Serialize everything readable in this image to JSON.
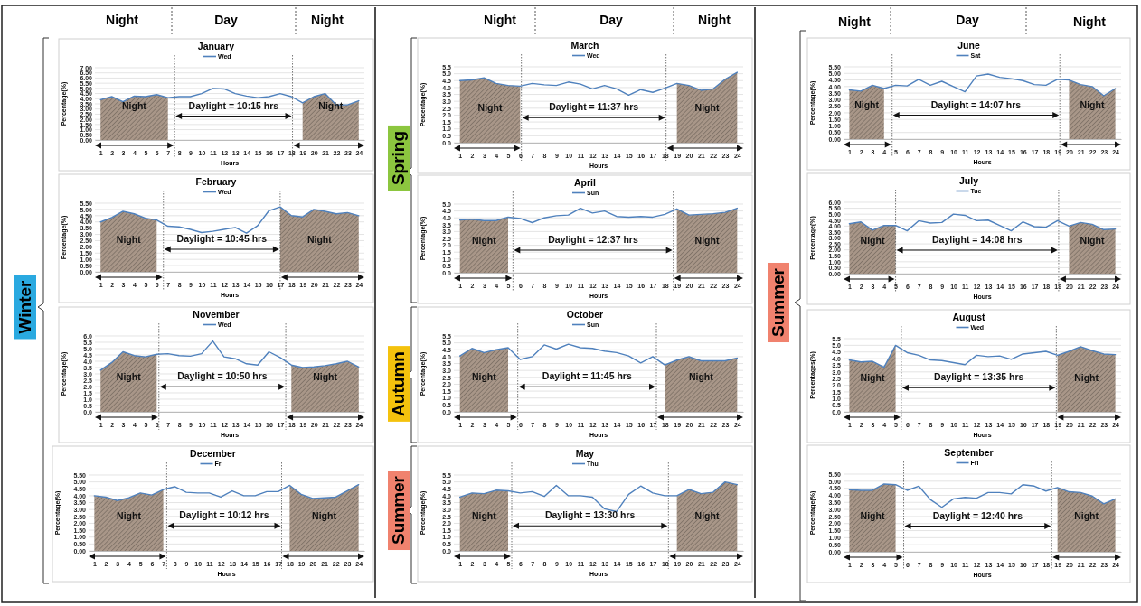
{
  "chart_data": [
    {
      "type": "line",
      "title": "January",
      "xlabel": "Hours",
      "ylabel": "Percentage(%)",
      "legend": "top",
      "grid": "y",
      "x": [
        1,
        2,
        3,
        4,
        5,
        6,
        7,
        8,
        9,
        10,
        11,
        12,
        13,
        14,
        15,
        16,
        17,
        18,
        19,
        20,
        21,
        22,
        23,
        24
      ],
      "xlim": [
        0.5,
        24.5
      ],
      "xticks": [
        1,
        2,
        3,
        4,
        5,
        6,
        7,
        8,
        9,
        10,
        11,
        12,
        13,
        14,
        15,
        16,
        17,
        18,
        19,
        20,
        21,
        22,
        23,
        24
      ],
      "ylim": [
        0,
        7
      ],
      "yticks": [
        {
          "value": 0,
          "label": "0.00"
        },
        {
          "value": 0.5,
          "label": "0.50"
        },
        {
          "value": 1,
          "label": "1.00"
        },
        {
          "value": 1.5,
          "label": "1.50"
        },
        {
          "value": 2,
          "label": "2.00"
        },
        {
          "value": 2.5,
          "label": "2.50"
        },
        {
          "value": 3,
          "label": "3.00"
        },
        {
          "value": 3.5,
          "label": "3.50"
        },
        {
          "value": 4,
          "label": "4.00"
        },
        {
          "value": 4.5,
          "label": "4.50"
        },
        {
          "value": 5,
          "label": "5.00"
        },
        {
          "value": 5.5,
          "label": "5.50"
        },
        {
          "value": 6,
          "label": "6.00"
        },
        {
          "value": 6.5,
          "label": "6.50"
        },
        {
          "value": 7,
          "label": "7.00"
        }
      ],
      "series": [
        {
          "type": "area",
          "color": "#a89688",
          "x": [
            1,
            2,
            3,
            4,
            5,
            6,
            7
          ],
          "values": [
            3.9,
            4.2,
            3.7,
            4.25,
            4.2,
            4.4,
            4.1
          ]
        },
        {
          "type": "area",
          "color": "#a89688",
          "x": [
            19,
            20,
            21,
            22,
            23,
            24
          ],
          "values": [
            3.6,
            4.2,
            4.5,
            3.4,
            3.4,
            3.8
          ]
        },
        {
          "name": "Wed",
          "color": "#4f81bd",
          "values": [
            3.9,
            4.2,
            3.7,
            4.25,
            4.2,
            4.4,
            4.1,
            4.2,
            4.2,
            4.5,
            5.0,
            4.95,
            4.5,
            4.25,
            4.1,
            4.2,
            4.5,
            4.2,
            3.6,
            4.2,
            4.5,
            3.4,
            3.4,
            3.8
          ]
        }
      ],
      "ref_lines": [
        {
          "axis": "x",
          "value": 7.6,
          "line_style": "dotted"
        },
        {
          "axis": "x",
          "value": 18.1,
          "line_style": "dotted"
        }
      ],
      "annotations": [
        "Daylight = 10:15 hrs",
        "Night",
        "Night"
      ]
    },
    {
      "type": "line",
      "title": "February",
      "xlabel": "Hours",
      "ylabel": "Percentage(%)",
      "legend": "top",
      "grid": "y",
      "x": [
        1,
        2,
        3,
        4,
        5,
        6,
        7,
        8,
        9,
        10,
        11,
        12,
        13,
        14,
        15,
        16,
        17,
        18,
        19,
        20,
        21,
        22,
        23,
        24
      ],
      "xlim": [
        0.5,
        24.5
      ],
      "xticks": [
        1,
        2,
        3,
        4,
        5,
        6,
        7,
        8,
        9,
        10,
        11,
        12,
        13,
        14,
        15,
        16,
        17,
        18,
        19,
        20,
        21,
        22,
        23,
        24
      ],
      "ylim": [
        0,
        5.5
      ],
      "yticks": [
        {
          "value": 0,
          "label": "0.00"
        },
        {
          "value": 0.5,
          "label": "0.50"
        },
        {
          "value": 1,
          "label": "1.00"
        },
        {
          "value": 1.5,
          "label": "1.50"
        },
        {
          "value": 2,
          "label": "2.00"
        },
        {
          "value": 2.5,
          "label": "2.50"
        },
        {
          "value": 3,
          "label": "3.00"
        },
        {
          "value": 3.5,
          "label": "3.50"
        },
        {
          "value": 4,
          "label": "4.00"
        },
        {
          "value": 4.5,
          "label": "4.50"
        },
        {
          "value": 5,
          "label": "5.00"
        },
        {
          "value": 5.5,
          "label": "5.50"
        }
      ],
      "series": [
        {
          "type": "area",
          "color": "#a89688",
          "x": [
            1,
            2,
            3,
            4,
            5,
            6
          ],
          "values": [
            4.0,
            4.35,
            4.85,
            4.65,
            4.3,
            4.15
          ]
        },
        {
          "type": "area",
          "color": "#a89688",
          "x": [
            17,
            18,
            19,
            20,
            21,
            22,
            23,
            24
          ],
          "values": [
            5.2,
            4.5,
            4.4,
            5.0,
            4.85,
            4.65,
            4.75,
            4.5
          ]
        },
        {
          "name": "Wed",
          "color": "#4f81bd",
          "values": [
            4.0,
            4.35,
            4.85,
            4.65,
            4.3,
            4.15,
            3.65,
            3.6,
            3.4,
            3.15,
            3.25,
            3.4,
            3.55,
            3.1,
            3.7,
            4.9,
            5.2,
            4.5,
            4.4,
            5.0,
            4.85,
            4.65,
            4.75,
            4.5
          ]
        }
      ],
      "ref_lines": [
        {
          "axis": "x",
          "value": 6.6,
          "line_style": "dotted"
        },
        {
          "axis": "x",
          "value": 17,
          "line_style": "dotted"
        }
      ],
      "annotations": [
        "Daylight = 10:45 hrs",
        "Night",
        "Night"
      ]
    },
    {
      "type": "line",
      "title": "November",
      "xlabel": "Hours",
      "ylabel": "Percentage(%)",
      "legend": "top",
      "grid": "y",
      "x": [
        1,
        2,
        3,
        4,
        5,
        6,
        7,
        8,
        9,
        10,
        11,
        12,
        13,
        14,
        15,
        16,
        17,
        18,
        19,
        20,
        21,
        22,
        23,
        24
      ],
      "xlim": [
        0.5,
        24.5
      ],
      "xticks": [
        1,
        2,
        3,
        4,
        5,
        6,
        7,
        8,
        9,
        10,
        11,
        12,
        13,
        14,
        15,
        16,
        17,
        18,
        19,
        20,
        21,
        22,
        23,
        24
      ],
      "ylim": [
        0,
        6
      ],
      "yticks": [
        {
          "value": 0,
          "label": "0.0"
        },
        {
          "value": 0.5,
          "label": "0.5"
        },
        {
          "value": 1,
          "label": "1.0"
        },
        {
          "value": 1.5,
          "label": "1.5"
        },
        {
          "value": 2,
          "label": "2.0"
        },
        {
          "value": 2.5,
          "label": "2.5"
        },
        {
          "value": 3,
          "label": "3.0"
        },
        {
          "value": 3.5,
          "label": "3.5"
        },
        {
          "value": 4,
          "label": "4.0"
        },
        {
          "value": 4.5,
          "label": "4.5"
        },
        {
          "value": 5,
          "label": "5.0"
        },
        {
          "value": 5.5,
          "label": "5.5"
        },
        {
          "value": 6,
          "label": "6.0"
        }
      ],
      "series": [
        {
          "type": "area",
          "color": "#a89688",
          "x": [
            1,
            2,
            3,
            4,
            5,
            6
          ],
          "values": [
            3.3,
            3.9,
            4.75,
            4.45,
            4.35,
            4.55
          ]
        },
        {
          "type": "area",
          "color": "#a89688",
          "x": [
            18,
            19,
            20,
            21,
            22,
            23,
            24
          ],
          "values": [
            3.7,
            3.5,
            3.55,
            3.65,
            3.8,
            4.0,
            3.55
          ]
        },
        {
          "name": "Wed",
          "color": "#4f81bd",
          "values": [
            3.3,
            3.9,
            4.75,
            4.45,
            4.35,
            4.55,
            4.6,
            4.45,
            4.4,
            4.6,
            5.6,
            4.35,
            4.2,
            3.8,
            3.7,
            4.75,
            4.3,
            3.7,
            3.5,
            3.55,
            3.65,
            3.8,
            4.0,
            3.55
          ]
        }
      ],
      "ref_lines": [
        {
          "axis": "x",
          "value": 6.2,
          "line_style": "dotted"
        },
        {
          "axis": "x",
          "value": 17.5,
          "line_style": "dotted"
        }
      ],
      "annotations": [
        "Daylight = 10:50 hrs",
        "Night",
        "Night"
      ]
    },
    {
      "type": "line",
      "title": "December",
      "xlabel": "Hours",
      "ylabel": "Percentage(%)",
      "legend": "top",
      "grid": "y",
      "x": [
        1,
        2,
        3,
        4,
        5,
        6,
        7,
        8,
        9,
        10,
        11,
        12,
        13,
        14,
        15,
        16,
        17,
        18,
        19,
        20,
        21,
        22,
        23,
        24
      ],
      "xlim": [
        0.5,
        24.5
      ],
      "xticks": [
        1,
        2,
        3,
        4,
        5,
        6,
        7,
        8,
        9,
        10,
        11,
        12,
        13,
        14,
        15,
        16,
        17,
        18,
        19,
        20,
        21,
        22,
        23,
        24
      ],
      "ylim": [
        0,
        5.5
      ],
      "yticks": [
        {
          "value": 0,
          "label": "0.00"
        },
        {
          "value": 0.5,
          "label": "0.50"
        },
        {
          "value": 1,
          "label": "1.00"
        },
        {
          "value": 1.5,
          "label": "1.50"
        },
        {
          "value": 2,
          "label": "2.00"
        },
        {
          "value": 2.5,
          "label": "2.50"
        },
        {
          "value": 3,
          "label": "3.00"
        },
        {
          "value": 3.5,
          "label": "3.50"
        },
        {
          "value": 4,
          "label": "4.00"
        },
        {
          "value": 4.5,
          "label": "4.50"
        },
        {
          "value": 5,
          "label": "5.00"
        },
        {
          "value": 5.5,
          "label": "5.50"
        }
      ],
      "series": [
        {
          "type": "area",
          "color": "#a89688",
          "x": [
            1,
            2,
            3,
            4,
            5,
            6,
            7
          ],
          "values": [
            4.0,
            3.9,
            3.65,
            3.85,
            4.2,
            4.05,
            4.45
          ]
        },
        {
          "type": "area",
          "color": "#a89688",
          "x": [
            18,
            19,
            20,
            21,
            22,
            23,
            24
          ],
          "values": [
            4.75,
            4.1,
            3.8,
            3.85,
            3.9,
            4.35,
            4.8
          ]
        },
        {
          "name": "Fri",
          "color": "#4f81bd",
          "values": [
            4.0,
            3.9,
            3.65,
            3.85,
            4.2,
            4.05,
            4.45,
            4.65,
            4.25,
            4.2,
            4.2,
            3.9,
            4.35,
            4.0,
            4.0,
            4.3,
            4.3,
            4.75,
            4.1,
            3.8,
            3.85,
            3.9,
            4.35,
            4.8
          ]
        }
      ],
      "ref_lines": [
        {
          "axis": "x",
          "value": 7.3,
          "line_style": "dotted"
        },
        {
          "axis": "x",
          "value": 17.3,
          "line_style": "dotted"
        }
      ],
      "annotations": [
        "Daylight = 10:12 hrs",
        "Night",
        "Night"
      ]
    },
    {
      "type": "line",
      "title": "March",
      "xlabel": "Hours",
      "ylabel": "Percentage(%)",
      "legend": "top",
      "grid": "y",
      "x": [
        1,
        2,
        3,
        4,
        5,
        6,
        7,
        8,
        9,
        10,
        11,
        12,
        13,
        14,
        15,
        16,
        17,
        18,
        19,
        20,
        21,
        22,
        23,
        24
      ],
      "xlim": [
        0.5,
        24.5
      ],
      "xticks": [
        1,
        2,
        3,
        4,
        5,
        6,
        7,
        8,
        9,
        10,
        11,
        12,
        13,
        14,
        15,
        16,
        17,
        18,
        19,
        20,
        21,
        22,
        23,
        24
      ],
      "ylim": [
        0,
        5.5
      ],
      "yticks": [
        {
          "value": 0,
          "label": "0.0"
        },
        {
          "value": 0.5,
          "label": "0.5"
        },
        {
          "value": 1,
          "label": "1.0"
        },
        {
          "value": 1.5,
          "label": "1.5"
        },
        {
          "value": 2,
          "label": "2.0"
        },
        {
          "value": 2.5,
          "label": "2.5"
        },
        {
          "value": 3,
          "label": "3.0"
        },
        {
          "value": 3.5,
          "label": "3.5"
        },
        {
          "value": 4,
          "label": "4.0"
        },
        {
          "value": 4.5,
          "label": "4.5"
        },
        {
          "value": 5,
          "label": "5.0"
        },
        {
          "value": 5.5,
          "label": "5.5"
        }
      ],
      "series": [
        {
          "type": "area",
          "color": "#a89688",
          "x": [
            1,
            2,
            3,
            4,
            5,
            6
          ],
          "values": [
            4.5,
            4.55,
            4.7,
            4.3,
            4.15,
            4.1
          ]
        },
        {
          "type": "area",
          "color": "#a89688",
          "x": [
            19,
            20,
            21,
            22,
            23,
            24
          ],
          "values": [
            4.3,
            4.15,
            3.8,
            3.9,
            4.6,
            5.1
          ]
        },
        {
          "name": "Wed",
          "color": "#4f81bd",
          "values": [
            4.5,
            4.55,
            4.7,
            4.3,
            4.15,
            4.1,
            4.3,
            4.2,
            4.15,
            4.4,
            4.25,
            3.9,
            4.15,
            3.9,
            3.45,
            3.85,
            3.65,
            3.95,
            4.3,
            4.15,
            3.8,
            3.9,
            4.6,
            5.1
          ]
        }
      ],
      "ref_lines": [
        {
          "axis": "x",
          "value": 6.1,
          "line_style": "dotted"
        },
        {
          "axis": "x",
          "value": 18.1,
          "line_style": "dotted"
        }
      ],
      "annotations": [
        "Daylight = 11:37 hrs",
        "Night",
        "Night"
      ]
    },
    {
      "type": "line",
      "title": "April",
      "xlabel": "Hours",
      "ylabel": "Percentage(%)",
      "legend": "top",
      "grid": "y",
      "x": [
        1,
        2,
        3,
        4,
        5,
        6,
        7,
        8,
        9,
        10,
        11,
        12,
        13,
        14,
        15,
        16,
        17,
        18,
        19,
        20,
        21,
        22,
        23,
        24
      ],
      "xlim": [
        0.5,
        24.5
      ],
      "xticks": [
        1,
        2,
        3,
        4,
        5,
        6,
        7,
        8,
        9,
        10,
        11,
        12,
        13,
        14,
        15,
        16,
        17,
        18,
        19,
        20,
        21,
        22,
        23,
        24
      ],
      "ylim": [
        0,
        5
      ],
      "yticks": [
        {
          "value": 0,
          "label": "0.0"
        },
        {
          "value": 0.5,
          "label": "0.5"
        },
        {
          "value": 1,
          "label": "1.0"
        },
        {
          "value": 1.5,
          "label": "1.5"
        },
        {
          "value": 2,
          "label": "2.0"
        },
        {
          "value": 2.5,
          "label": "2.5"
        },
        {
          "value": 3,
          "label": "3.0"
        },
        {
          "value": 3.5,
          "label": "3.5"
        },
        {
          "value": 4,
          "label": "4.0"
        },
        {
          "value": 4.5,
          "label": "4.5"
        },
        {
          "value": 5,
          "label": "5.0"
        }
      ],
      "series": [
        {
          "type": "area",
          "color": "#a89688",
          "x": [
            1,
            2,
            3,
            4,
            5
          ],
          "values": [
            3.85,
            3.9,
            3.8,
            3.8,
            4.05
          ]
        },
        {
          "type": "area",
          "color": "#a89688",
          "x": [
            19,
            20,
            21,
            22,
            23,
            24
          ],
          "values": [
            4.65,
            4.2,
            4.25,
            4.3,
            4.4,
            4.7
          ]
        },
        {
          "name": "Sun",
          "color": "#4f81bd",
          "values": [
            3.85,
            3.9,
            3.8,
            3.8,
            4.05,
            3.95,
            3.65,
            4.0,
            4.15,
            4.2,
            4.7,
            4.35,
            4.5,
            4.1,
            4.05,
            4.1,
            4.05,
            4.25,
            4.65,
            4.2,
            4.25,
            4.3,
            4.4,
            4.7
          ]
        }
      ],
      "ref_lines": [
        {
          "axis": "x",
          "value": 5.4,
          "line_style": "dotted"
        },
        {
          "axis": "x",
          "value": 18.7,
          "line_style": "dotted"
        }
      ],
      "annotations": [
        "Daylight = 12:37 hrs",
        "Night",
        "Night"
      ]
    },
    {
      "type": "line",
      "title": "October",
      "xlabel": "Hours",
      "ylabel": "Percentage(%)",
      "legend": "top",
      "grid": "y",
      "x": [
        1,
        2,
        3,
        4,
        5,
        6,
        7,
        8,
        9,
        10,
        11,
        12,
        13,
        14,
        15,
        16,
        17,
        18,
        19,
        20,
        21,
        22,
        23,
        24
      ],
      "xlim": [
        0.5,
        24.5
      ],
      "xticks": [
        1,
        2,
        3,
        4,
        5,
        6,
        7,
        8,
        9,
        10,
        11,
        12,
        13,
        14,
        15,
        16,
        17,
        18,
        19,
        20,
        21,
        22,
        23,
        24
      ],
      "ylim": [
        0,
        5.5
      ],
      "yticks": [
        {
          "value": 0,
          "label": "0.0"
        },
        {
          "value": 0.5,
          "label": "0.5"
        },
        {
          "value": 1,
          "label": "1.0"
        },
        {
          "value": 1.5,
          "label": "1.5"
        },
        {
          "value": 2,
          "label": "2.0"
        },
        {
          "value": 2.5,
          "label": "2.5"
        },
        {
          "value": 3,
          "label": "3.0"
        },
        {
          "value": 3.5,
          "label": "3.5"
        },
        {
          "value": 4,
          "label": "4.0"
        },
        {
          "value": 4.5,
          "label": "4.5"
        },
        {
          "value": 5,
          "label": "5.0"
        },
        {
          "value": 5.5,
          "label": "5.5"
        }
      ],
      "series": [
        {
          "type": "area",
          "color": "#a89688",
          "x": [
            1,
            2,
            3,
            4,
            5
          ],
          "values": [
            4.05,
            4.6,
            4.3,
            4.5,
            4.65
          ]
        },
        {
          "type": "area",
          "color": "#a89688",
          "x": [
            18,
            19,
            20,
            21,
            22,
            23,
            24
          ],
          "values": [
            3.4,
            3.75,
            4.0,
            3.7,
            3.7,
            3.7,
            3.9
          ]
        },
        {
          "name": "Sun",
          "color": "#4f81bd",
          "values": [
            4.05,
            4.6,
            4.3,
            4.5,
            4.65,
            3.8,
            4.0,
            4.85,
            4.55,
            4.9,
            4.65,
            4.6,
            4.4,
            4.3,
            4.05,
            3.55,
            4.0,
            3.4,
            3.75,
            4.0,
            3.7,
            3.7,
            3.7,
            3.9
          ]
        }
      ],
      "ref_lines": [
        {
          "axis": "x",
          "value": 5.8,
          "line_style": "dotted"
        },
        {
          "axis": "x",
          "value": 17.3,
          "line_style": "dotted"
        }
      ],
      "annotations": [
        "Daylight = 11:45 hrs",
        "Night",
        "Night"
      ]
    },
    {
      "type": "line",
      "title": "May",
      "xlabel": "Hours",
      "ylabel": "Percentage(%)",
      "legend": "top",
      "grid": "y",
      "x": [
        1,
        2,
        3,
        4,
        5,
        6,
        7,
        8,
        9,
        10,
        11,
        12,
        13,
        14,
        15,
        16,
        17,
        18,
        19,
        20,
        21,
        22,
        23,
        24
      ],
      "xlim": [
        0.5,
        24.5
      ],
      "xticks": [
        1,
        2,
        3,
        4,
        5,
        6,
        7,
        8,
        9,
        10,
        11,
        12,
        13,
        14,
        15,
        16,
        17,
        18,
        19,
        20,
        21,
        22,
        23,
        24
      ],
      "ylim": [
        0,
        5.5
      ],
      "yticks": [
        {
          "value": 0,
          "label": "0.0"
        },
        {
          "value": 0.5,
          "label": "0.5"
        },
        {
          "value": 1,
          "label": "1.0"
        },
        {
          "value": 1.5,
          "label": "1.5"
        },
        {
          "value": 2,
          "label": "2.0"
        },
        {
          "value": 2.5,
          "label": "2.5"
        },
        {
          "value": 3,
          "label": "3.0"
        },
        {
          "value": 3.5,
          "label": "3.5"
        },
        {
          "value": 4,
          "label": "4.0"
        },
        {
          "value": 4.5,
          "label": "4.5"
        },
        {
          "value": 5,
          "label": "5.0"
        },
        {
          "value": 5.5,
          "label": "5.5"
        }
      ],
      "series": [
        {
          "type": "area",
          "color": "#a89688",
          "x": [
            1,
            2,
            3,
            4,
            5
          ],
          "values": [
            3.9,
            4.2,
            4.15,
            4.4,
            4.35
          ]
        },
        {
          "type": "area",
          "color": "#a89688",
          "x": [
            19,
            20,
            21,
            22,
            23,
            24
          ],
          "values": [
            4.0,
            4.45,
            4.15,
            4.25,
            5.0,
            4.8
          ]
        },
        {
          "name": "Thu",
          "color": "#4f81bd",
          "values": [
            3.9,
            4.2,
            4.15,
            4.4,
            4.35,
            4.2,
            4.3,
            3.95,
            4.75,
            4.0,
            4.0,
            3.9,
            3.05,
            2.85,
            4.1,
            4.7,
            4.2,
            4.0,
            4.0,
            4.45,
            4.15,
            4.25,
            5.0,
            4.8
          ]
        }
      ],
      "ref_lines": [
        {
          "axis": "x",
          "value": 5.3,
          "line_style": "dotted"
        },
        {
          "axis": "x",
          "value": 18.3,
          "line_style": "dotted"
        }
      ],
      "annotations": [
        "Daylight = 13:30 hrs",
        "Night",
        "Night"
      ]
    },
    {
      "type": "line",
      "title": "June",
      "xlabel": "Hours",
      "ylabel": "Percentage(%)",
      "legend": "top",
      "grid": "y",
      "x": [
        1,
        2,
        3,
        4,
        5,
        6,
        7,
        8,
        9,
        10,
        11,
        12,
        13,
        14,
        15,
        16,
        17,
        18,
        19,
        20,
        21,
        22,
        23,
        24
      ],
      "xlim": [
        0.5,
        24.5
      ],
      "xticks": [
        1,
        2,
        3,
        4,
        5,
        6,
        7,
        8,
        9,
        10,
        11,
        12,
        13,
        14,
        15,
        16,
        17,
        18,
        19,
        20,
        21,
        22,
        23,
        24
      ],
      "ylim": [
        0,
        5.5
      ],
      "yticks": [
        {
          "value": 0,
          "label": "0.00"
        },
        {
          "value": 0.5,
          "label": "0.50"
        },
        {
          "value": 1,
          "label": "1.00"
        },
        {
          "value": 1.5,
          "label": "1.50"
        },
        {
          "value": 2,
          "label": "2.00"
        },
        {
          "value": 2.5,
          "label": "2.50"
        },
        {
          "value": 3,
          "label": "3.00"
        },
        {
          "value": 3.5,
          "label": "3.50"
        },
        {
          "value": 4,
          "label": "4.00"
        },
        {
          "value": 4.5,
          "label": "4.50"
        },
        {
          "value": 5,
          "label": "5.00"
        },
        {
          "value": 5.5,
          "label": "5.50"
        }
      ],
      "series": [
        {
          "type": "area",
          "color": "#a89688",
          "x": [
            1,
            2,
            3,
            4
          ],
          "values": [
            3.75,
            3.65,
            4.1,
            3.85
          ]
        },
        {
          "type": "area",
          "color": "#a89688",
          "x": [
            20,
            21,
            22,
            23,
            24
          ],
          "values": [
            4.5,
            4.15,
            4.0,
            3.3,
            3.85
          ]
        },
        {
          "name": "Sat",
          "color": "#4f81bd",
          "values": [
            3.75,
            3.65,
            4.1,
            3.85,
            4.1,
            4.05,
            4.55,
            4.1,
            4.4,
            4.0,
            3.6,
            4.8,
            4.95,
            4.7,
            4.6,
            4.45,
            4.15,
            4.1,
            4.55,
            4.5,
            4.15,
            4.0,
            3.3,
            3.85
          ]
        }
      ],
      "ref_lines": [
        {
          "axis": "x",
          "value": 4.7,
          "line_style": "dotted"
        },
        {
          "axis": "x",
          "value": 19.2,
          "line_style": "dotted"
        }
      ],
      "annotations": [
        "Daylight = 14:07 hrs",
        "Night",
        "Night"
      ]
    },
    {
      "type": "line",
      "title": "July",
      "xlabel": "Hours",
      "ylabel": "Percentage(%)",
      "legend": "top",
      "grid": "y",
      "x": [
        1,
        2,
        3,
        4,
        5,
        6,
        7,
        8,
        9,
        10,
        11,
        12,
        13,
        14,
        15,
        16,
        17,
        18,
        19,
        20,
        21,
        22,
        23,
        24
      ],
      "xlim": [
        0.5,
        24.5
      ],
      "xticks": [
        1,
        2,
        3,
        4,
        5,
        6,
        7,
        8,
        9,
        10,
        11,
        12,
        13,
        14,
        15,
        16,
        17,
        18,
        19,
        20,
        21,
        22,
        23,
        24
      ],
      "ylim": [
        0,
        6
      ],
      "yticks": [
        {
          "value": 0,
          "label": "0.00"
        },
        {
          "value": 0.5,
          "label": "0.50"
        },
        {
          "value": 1,
          "label": "1.00"
        },
        {
          "value": 1.5,
          "label": "1.50"
        },
        {
          "value": 2,
          "label": "2.00"
        },
        {
          "value": 2.5,
          "label": "2.50"
        },
        {
          "value": 3,
          "label": "3.00"
        },
        {
          "value": 3.5,
          "label": "3.50"
        },
        {
          "value": 4,
          "label": "4.00"
        },
        {
          "value": 4.5,
          "label": "4.50"
        },
        {
          "value": 5,
          "label": "5.00"
        },
        {
          "value": 5.5,
          "label": "5.50"
        },
        {
          "value": 6,
          "label": "6.00"
        }
      ],
      "series": [
        {
          "type": "area",
          "color": "#a89688",
          "x": [
            1,
            2,
            3,
            4,
            5
          ],
          "values": [
            4.2,
            4.35,
            3.65,
            4.05,
            4.05
          ]
        },
        {
          "type": "area",
          "color": "#a89688",
          "x": [
            20,
            21,
            22,
            23,
            24
          ],
          "values": [
            4.0,
            4.3,
            4.15,
            3.7,
            3.75
          ]
        },
        {
          "name": "Tue",
          "color": "#4f81bd",
          "values": [
            4.2,
            4.35,
            3.65,
            4.05,
            4.05,
            3.6,
            4.45,
            4.25,
            4.3,
            5.0,
            4.9,
            4.45,
            4.5,
            4.05,
            3.6,
            4.35,
            3.95,
            3.9,
            4.45,
            4.0,
            4.3,
            4.15,
            3.7,
            3.75
          ]
        }
      ],
      "ref_lines": [
        {
          "axis": "x",
          "value": 5,
          "line_style": "dotted"
        },
        {
          "axis": "x",
          "value": 19.1,
          "line_style": "dotted"
        }
      ],
      "annotations": [
        "Daylight = 14:08 hrs",
        "Night",
        "Night"
      ]
    },
    {
      "type": "line",
      "title": "August",
      "xlabel": "Hours",
      "ylabel": "Percentages(%)",
      "legend": "top",
      "grid": "y",
      "x": [
        1,
        2,
        3,
        4,
        5,
        6,
        7,
        8,
        9,
        10,
        11,
        12,
        13,
        14,
        15,
        16,
        17,
        18,
        19,
        20,
        21,
        22,
        23,
        24
      ],
      "xlim": [
        0.5,
        24.5
      ],
      "xticks": [
        1,
        2,
        3,
        4,
        5,
        6,
        7,
        8,
        9,
        10,
        11,
        12,
        13,
        14,
        15,
        16,
        17,
        18,
        19,
        20,
        21,
        22,
        23,
        24
      ],
      "ylim": [
        0,
        5.5
      ],
      "yticks": [
        {
          "value": 0,
          "label": "0.0"
        },
        {
          "value": 0.5,
          "label": "0.5"
        },
        {
          "value": 1,
          "label": "1.0"
        },
        {
          "value": 1.5,
          "label": "1.5"
        },
        {
          "value": 2,
          "label": "2.0"
        },
        {
          "value": 2.5,
          "label": "2.5"
        },
        {
          "value": 3,
          "label": "3.0"
        },
        {
          "value": 3.5,
          "label": "3.5"
        },
        {
          "value": 4,
          "label": "4.0"
        },
        {
          "value": 4.5,
          "label": "4.5"
        },
        {
          "value": 5,
          "label": "5.0"
        },
        {
          "value": 5.5,
          "label": "5.5"
        }
      ],
      "series": [
        {
          "type": "area",
          "color": "#a89688",
          "x": [
            1,
            2,
            3,
            4,
            5
          ],
          "values": [
            3.9,
            3.75,
            3.8,
            3.35,
            5.0
          ]
        },
        {
          "type": "area",
          "color": "#a89688",
          "x": [
            19,
            20,
            21,
            22,
            23,
            24
          ],
          "values": [
            4.25,
            4.55,
            4.9,
            4.6,
            4.35,
            4.3
          ]
        },
        {
          "name": "Wed",
          "color": "#4f81bd",
          "values": [
            3.9,
            3.75,
            3.8,
            3.35,
            5.0,
            4.45,
            4.25,
            3.9,
            3.85,
            3.7,
            3.55,
            4.25,
            4.15,
            4.2,
            3.95,
            4.35,
            4.45,
            4.55,
            4.25,
            4.55,
            4.9,
            4.6,
            4.35,
            4.3
          ]
        }
      ],
      "ref_lines": [
        {
          "axis": "x",
          "value": 5.5,
          "line_style": "dotted"
        },
        {
          "axis": "x",
          "value": 18.9,
          "line_style": "dotted"
        }
      ],
      "annotations": [
        "Daylight = 13:35 hrs",
        "Night",
        "Night"
      ]
    },
    {
      "type": "line",
      "title": "September",
      "xlabel": "Hours",
      "ylabel": "Percentage(%)",
      "legend": "top",
      "grid": "y",
      "x": [
        1,
        2,
        3,
        4,
        5,
        6,
        7,
        8,
        9,
        10,
        11,
        12,
        13,
        14,
        15,
        16,
        17,
        18,
        19,
        20,
        21,
        22,
        23,
        24
      ],
      "xlim": [
        0.5,
        24.5
      ],
      "xticks": [
        1,
        2,
        3,
        4,
        5,
        6,
        7,
        8,
        9,
        10,
        11,
        12,
        13,
        14,
        15,
        16,
        17,
        18,
        19,
        20,
        21,
        22,
        23,
        24
      ],
      "ylim": [
        0,
        5.5
      ],
      "yticks": [
        {
          "value": 0,
          "label": "0.00"
        },
        {
          "value": 0.5,
          "label": "0.50"
        },
        {
          "value": 1,
          "label": "1.00"
        },
        {
          "value": 1.5,
          "label": "1.50"
        },
        {
          "value": 2,
          "label": "2.00"
        },
        {
          "value": 2.5,
          "label": "2.50"
        },
        {
          "value": 3,
          "label": "3.00"
        },
        {
          "value": 3.5,
          "label": "3.50"
        },
        {
          "value": 4,
          "label": "4.00"
        },
        {
          "value": 4.5,
          "label": "4.50"
        },
        {
          "value": 5,
          "label": "5.00"
        },
        {
          "value": 5.5,
          "label": "5.50"
        }
      ],
      "series": [
        {
          "type": "area",
          "color": "#a89688",
          "x": [
            1,
            2,
            3,
            4,
            5
          ],
          "values": [
            4.4,
            4.35,
            4.35,
            4.8,
            4.75
          ]
        },
        {
          "type": "area",
          "color": "#a89688",
          "x": [
            19,
            20,
            21,
            22,
            23,
            24
          ],
          "values": [
            4.55,
            4.25,
            4.2,
            3.95,
            3.4,
            3.75
          ]
        },
        {
          "name": "Fri",
          "color": "#4f81bd",
          "values": [
            4.4,
            4.35,
            4.35,
            4.8,
            4.75,
            4.35,
            4.65,
            3.7,
            3.15,
            3.75,
            3.85,
            3.8,
            4.2,
            4.2,
            4.1,
            4.75,
            4.65,
            4.3,
            4.55,
            4.25,
            4.2,
            3.95,
            3.4,
            3.75
          ]
        }
      ],
      "ref_lines": [
        {
          "axis": "x",
          "value": 5.7,
          "line_style": "dotted"
        },
        {
          "axis": "x",
          "value": 18.5,
          "line_style": "dotted"
        }
      ],
      "annotations": [
        "Daylight = 12:40 hrs",
        "Night",
        "Night"
      ]
    },
    {
      "type": "other",
      "annotations": [
        "Night",
        "Day",
        "Night",
        "Night",
        "Day",
        "Night",
        "Night",
        "Day",
        "Night",
        "Winter",
        "Spring",
        "Autumn",
        "Summer",
        "Summer"
      ]
    }
  ]
}
